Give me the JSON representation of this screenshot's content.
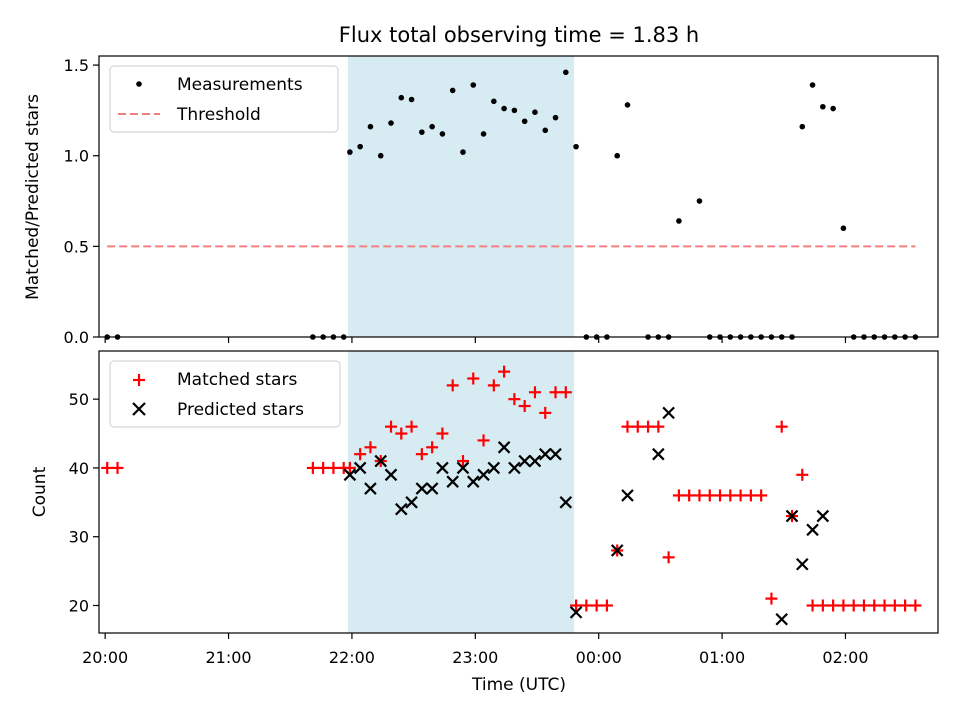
{
  "chart_data": [
    {
      "type": "scatter",
      "title": "Flux total observing time = 1.83 h",
      "ylabel": "Matched/Predicted stars",
      "xlim": [
        "19:57",
        "02:45"
      ],
      "ylim": [
        0,
        1.55
      ],
      "yticks": [
        "0.0",
        "0.5",
        "1.0",
        "1.5"
      ],
      "shaded_region": {
        "x0": "21:58",
        "x1": "23:48",
        "color": "#add8e6"
      },
      "legend_position": "top-left",
      "series": [
        {
          "name": "Measurements",
          "marker": "dot",
          "color": "#000000",
          "x": [
            "20:01",
            "20:06",
            "21:41",
            "21:46",
            "21:51",
            "21:56",
            "21:59",
            "22:04",
            "22:09",
            "22:14",
            "22:19",
            "22:24",
            "22:29",
            "22:34",
            "22:39",
            "22:44",
            "22:49",
            "22:54",
            "22:59",
            "23:04",
            "23:09",
            "23:14",
            "23:19",
            "23:24",
            "23:29",
            "23:34",
            "23:39",
            "23:44",
            "23:49",
            "23:54",
            "23:59",
            "00:04",
            "00:09",
            "00:14",
            "00:24",
            "00:29",
            "00:34",
            "00:39",
            "00:49",
            "00:54",
            "00:59",
            "01:04",
            "01:09",
            "01:14",
            "01:19",
            "01:24",
            "01:29",
            "01:34",
            "01:39",
            "01:44",
            "01:49",
            "01:54",
            "01:59",
            "02:04",
            "02:09",
            "02:14",
            "02:19",
            "02:24",
            "02:29",
            "02:34"
          ],
          "y": [
            0,
            0,
            0,
            0,
            0,
            0,
            1.02,
            1.05,
            1.16,
            1.0,
            1.18,
            1.32,
            1.31,
            1.13,
            1.16,
            1.12,
            1.36,
            1.02,
            1.39,
            1.12,
            1.3,
            1.26,
            1.25,
            1.19,
            1.24,
            1.14,
            1.21,
            1.46,
            1.05,
            0,
            0,
            0,
            1.0,
            1.28,
            0,
            0,
            0,
            0.64,
            0.75,
            0,
            0,
            0,
            0,
            0,
            0,
            0,
            0,
            0,
            1.16,
            1.39,
            1.27,
            1.26,
            0.6,
            0,
            0,
            0,
            0,
            0,
            0,
            0
          ]
        },
        {
          "name": "Threshold",
          "marker": "dashed-line",
          "color": "#f08080",
          "x": [
            "20:01",
            "02:34"
          ],
          "y": [
            0.5,
            0.5
          ]
        }
      ]
    },
    {
      "type": "scatter",
      "xlabel": "Time (UTC)",
      "ylabel": "Count",
      "xticks": [
        "20:00",
        "21:00",
        "22:00",
        "23:00",
        "00:00",
        "01:00",
        "02:00"
      ],
      "ylim": [
        16,
        57
      ],
      "yticks": [
        "20",
        "30",
        "40",
        "50"
      ],
      "shaded_region": {
        "x0": "21:58",
        "x1": "23:48",
        "color": "#add8e6"
      },
      "legend_position": "top-left",
      "series": [
        {
          "name": "Matched stars",
          "marker": "plus",
          "color": "#ff0000",
          "x": [
            "20:01",
            "20:06",
            "21:41",
            "21:46",
            "21:51",
            "21:56",
            "21:59",
            "22:04",
            "22:09",
            "22:14",
            "22:19",
            "22:24",
            "22:29",
            "22:34",
            "22:39",
            "22:44",
            "22:49",
            "22:54",
            "22:59",
            "23:04",
            "23:09",
            "23:14",
            "23:19",
            "23:24",
            "23:29",
            "23:34",
            "23:39",
            "23:44",
            "23:49",
            "23:54",
            "23:59",
            "00:04",
            "00:09",
            "00:14",
            "00:19",
            "00:24",
            "00:29",
            "00:34",
            "00:39",
            "00:44",
            "00:49",
            "00:54",
            "00:59",
            "01:04",
            "01:09",
            "01:14",
            "01:19",
            "01:24",
            "01:29",
            "01:34",
            "01:39",
            "01:44",
            "01:49",
            "01:54",
            "01:59",
            "02:04",
            "02:09",
            "02:14",
            "02:19",
            "02:24",
            "02:29",
            "02:34"
          ],
          "y": [
            40,
            40,
            40,
            40,
            40,
            40,
            40,
            42,
            43,
            41,
            46,
            45,
            46,
            42,
            43,
            45,
            52,
            41,
            53,
            44,
            52,
            54,
            50,
            49,
            51,
            48,
            51,
            51,
            20,
            20,
            20,
            20,
            28,
            46,
            46,
            46,
            46,
            27,
            36,
            36,
            36,
            36,
            36,
            36,
            36,
            36,
            36,
            21,
            46,
            33,
            39,
            20,
            20,
            20,
            20,
            20,
            20,
            20,
            20,
            20,
            20,
            20
          ]
        },
        {
          "name": "Predicted stars",
          "marker": "x",
          "color": "#000000",
          "x": [
            "21:59",
            "22:04",
            "22:09",
            "22:14",
            "22:19",
            "22:24",
            "22:29",
            "22:34",
            "22:39",
            "22:44",
            "22:49",
            "22:54",
            "22:59",
            "23:04",
            "23:09",
            "23:14",
            "23:19",
            "23:24",
            "23:29",
            "23:34",
            "23:39",
            "23:44",
            "23:49",
            "00:09",
            "00:14",
            "00:29",
            "00:34",
            "01:29",
            "01:34",
            "01:39",
            "01:44",
            "01:49"
          ],
          "y": [
            39,
            40,
            37,
            41,
            39,
            34,
            35,
            37,
            37,
            40,
            38,
            40,
            38,
            39,
            40,
            43,
            40,
            41,
            41,
            42,
            42,
            35,
            19,
            28,
            36,
            42,
            48,
            18,
            33,
            26,
            31,
            33
          ]
        }
      ]
    }
  ]
}
